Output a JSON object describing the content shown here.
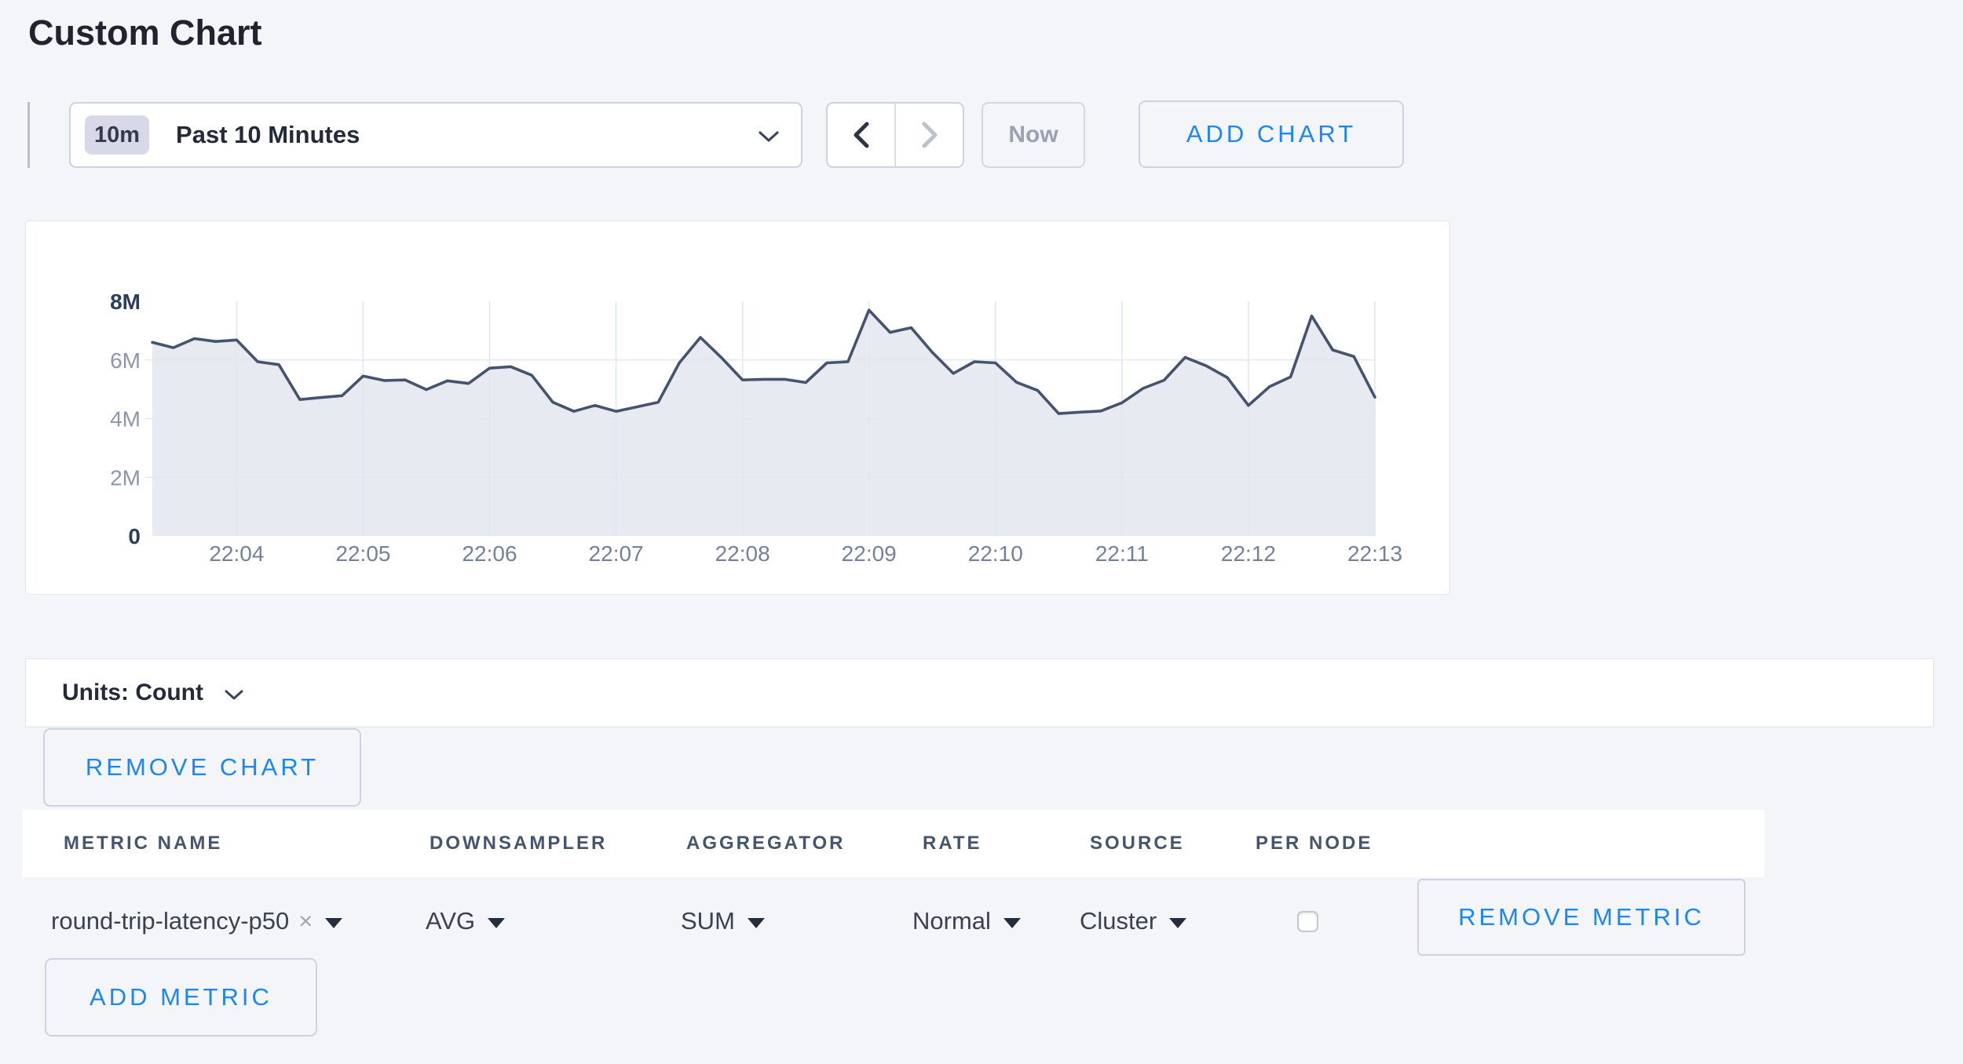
{
  "page": {
    "title": "Custom Chart"
  },
  "toolbar": {
    "time_window": {
      "badge": "10m",
      "label": "Past 10 Minutes"
    },
    "now_label": "Now",
    "add_chart_label": "ADD CHART"
  },
  "chart_data": {
    "type": "area",
    "series_name": "round-trip-latency-p50",
    "unit": "Count",
    "aggregation": "AVG / SUM",
    "x_start": "22:03:20",
    "x_interval_seconds": 10,
    "values": [
      6600000,
      6420000,
      6730000,
      6630000,
      6680000,
      5940000,
      5840000,
      4650000,
      4720000,
      4780000,
      5450000,
      5300000,
      5320000,
      4990000,
      5290000,
      5200000,
      5720000,
      5770000,
      5480000,
      4560000,
      4250000,
      4450000,
      4250000,
      4400000,
      4560000,
      5900000,
      6770000,
      6080000,
      5320000,
      5340000,
      5340000,
      5230000,
      5900000,
      5940000,
      7700000,
      6940000,
      7100000,
      6260000,
      5540000,
      5940000,
      5900000,
      5240000,
      4960000,
      4170000,
      4220000,
      4260000,
      4540000,
      5030000,
      5310000,
      6090000,
      5800000,
      5400000,
      4450000,
      5090000,
      5420000,
      7500000,
      6340000,
      6120000,
      4730000
    ],
    "ylim": [
      0,
      8000000
    ],
    "y_ticks": [
      {
        "label": "0",
        "value": 0,
        "bold": true,
        "line": false
      },
      {
        "label": "2M",
        "value": 2000000,
        "bold": false,
        "line": true
      },
      {
        "label": "4M",
        "value": 4000000,
        "bold": false,
        "line": true
      },
      {
        "label": "6M",
        "value": 6000000,
        "bold": false,
        "line": true
      },
      {
        "label": "8M",
        "value": 8000000,
        "bold": true,
        "line": false
      }
    ],
    "x_ticks": [
      {
        "label": "22:04",
        "index": 4
      },
      {
        "label": "22:05",
        "index": 10
      },
      {
        "label": "22:06",
        "index": 16
      },
      {
        "label": "22:07",
        "index": 22
      },
      {
        "label": "22:08",
        "index": 28
      },
      {
        "label": "22:09",
        "index": 34
      },
      {
        "label": "22:10",
        "index": 40
      },
      {
        "label": "22:11",
        "index": 46
      },
      {
        "label": "22:12",
        "index": 52
      },
      {
        "label": "22:13",
        "index": 58
      }
    ],
    "grid": true,
    "legend": "none",
    "colors": {
      "line": "#44536e",
      "fill": "#e8eaf1",
      "grid_v": "#e2e6f1",
      "grid_h": "#e4e8f2",
      "tick_bold": "#2f3e58",
      "tick_light": "#8b97ad",
      "x_label": "#73819c"
    }
  },
  "units_bar": {
    "label": "Units: Count"
  },
  "chart_actions": {
    "remove_chart_label": "REMOVE CHART"
  },
  "metrics_table": {
    "headers": [
      "METRIC NAME",
      "DOWNSAMPLER",
      "AGGREGATOR",
      "RATE",
      "SOURCE",
      "PER NODE"
    ],
    "rows": [
      {
        "metric_name": "round-trip-latency-p50",
        "remove_tag": "×",
        "downsampler": "AVG",
        "aggregator": "SUM",
        "rate": "Normal",
        "source": "Cluster",
        "per_node_checked": false,
        "remove_label": "REMOVE METRIC"
      }
    ],
    "add_metric_label": "ADD METRIC"
  },
  "colors": {
    "accent_blue": "#1d86f2",
    "background": "#f4f5f9"
  }
}
